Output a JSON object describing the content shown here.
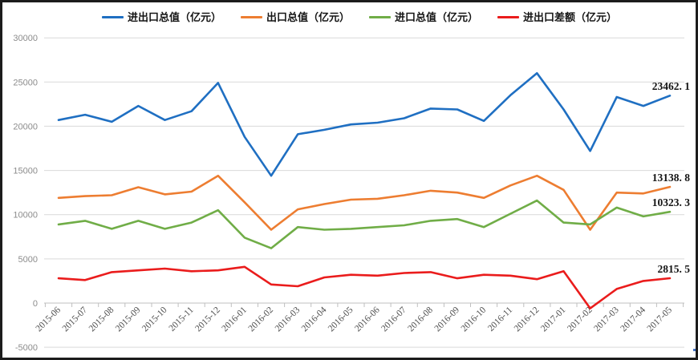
{
  "chart_data": {
    "type": "line",
    "title": "",
    "xlabel": "",
    "ylabel": "",
    "unit": "亿元",
    "ylim": [
      -5000,
      30000
    ],
    "yticks": [
      30000,
      25000,
      20000,
      15000,
      10000,
      5000,
      0,
      -5000
    ],
    "grid": "horizontal",
    "legend_position": "top",
    "categories": [
      "2015-06",
      "2015-07",
      "2015-08",
      "2015-09",
      "2015-10",
      "2015-11",
      "2015-12",
      "2016-01",
      "2016-02",
      "2016-03",
      "2016-04",
      "2016-05",
      "2016-06",
      "2016-07",
      "2016-08",
      "2016-09",
      "2016-10",
      "2016-11",
      "2016-12",
      "2017-01",
      "2017-02",
      "2017-03",
      "2017-04",
      "2017-05"
    ],
    "series": [
      {
        "name": "进出口总值（亿元）",
        "color": "#1f6fc2",
        "values": [
          20700,
          21300,
          20500,
          22300,
          20700,
          21700,
          24900,
          18800,
          14400,
          19100,
          19600,
          20200,
          20400,
          20900,
          22000,
          21900,
          20600,
          23500,
          26000,
          21900,
          17200,
          23300,
          22300,
          23462.1
        ]
      },
      {
        "name": "出口总值（亿元）",
        "color": "#ed7d31",
        "values": [
          11900,
          12100,
          12200,
          13100,
          12300,
          12600,
          14400,
          11400,
          8300,
          10600,
          11200,
          11700,
          11800,
          12200,
          12700,
          12500,
          11900,
          13300,
          14400,
          12800,
          8300,
          12500,
          12400,
          13138.8
        ]
      },
      {
        "name": "进口总值（亿元）",
        "color": "#70ad47",
        "values": [
          8900,
          9300,
          8400,
          9300,
          8400,
          9100,
          10500,
          7400,
          6200,
          8600,
          8300,
          8400,
          8600,
          8800,
          9300,
          9500,
          8600,
          10100,
          11600,
          9100,
          8900,
          10800,
          9800,
          10323.3
        ]
      },
      {
        "name": "进出口差额（亿元）",
        "color": "#ea1c1c",
        "values": [
          2800,
          2600,
          3500,
          3700,
          3900,
          3600,
          3700,
          4100,
          2100,
          1900,
          2900,
          3200,
          3100,
          3400,
          3500,
          2800,
          3200,
          3100,
          2700,
          3600,
          -600,
          1600,
          2500,
          2815.5
        ]
      }
    ],
    "end_labels": [
      {
        "text": "23462. 1",
        "series": "进出口总值（亿元）",
        "value": 23462.1
      },
      {
        "text": "13138. 8",
        "series": "出口总值（亿元）",
        "value": 13138.8
      },
      {
        "text": "10323. 3",
        "series": "进口总值（亿元）",
        "value": 10323.3
      },
      {
        "text": "2815. 5",
        "series": "进出口差额（亿元）",
        "value": 2815.5
      }
    ]
  },
  "style": {
    "gridline_color": "#d9d9d9",
    "axis_line_color": "#bfbfbf",
    "background": "#ffffff",
    "frame_border_color": "#1c1c1c"
  }
}
